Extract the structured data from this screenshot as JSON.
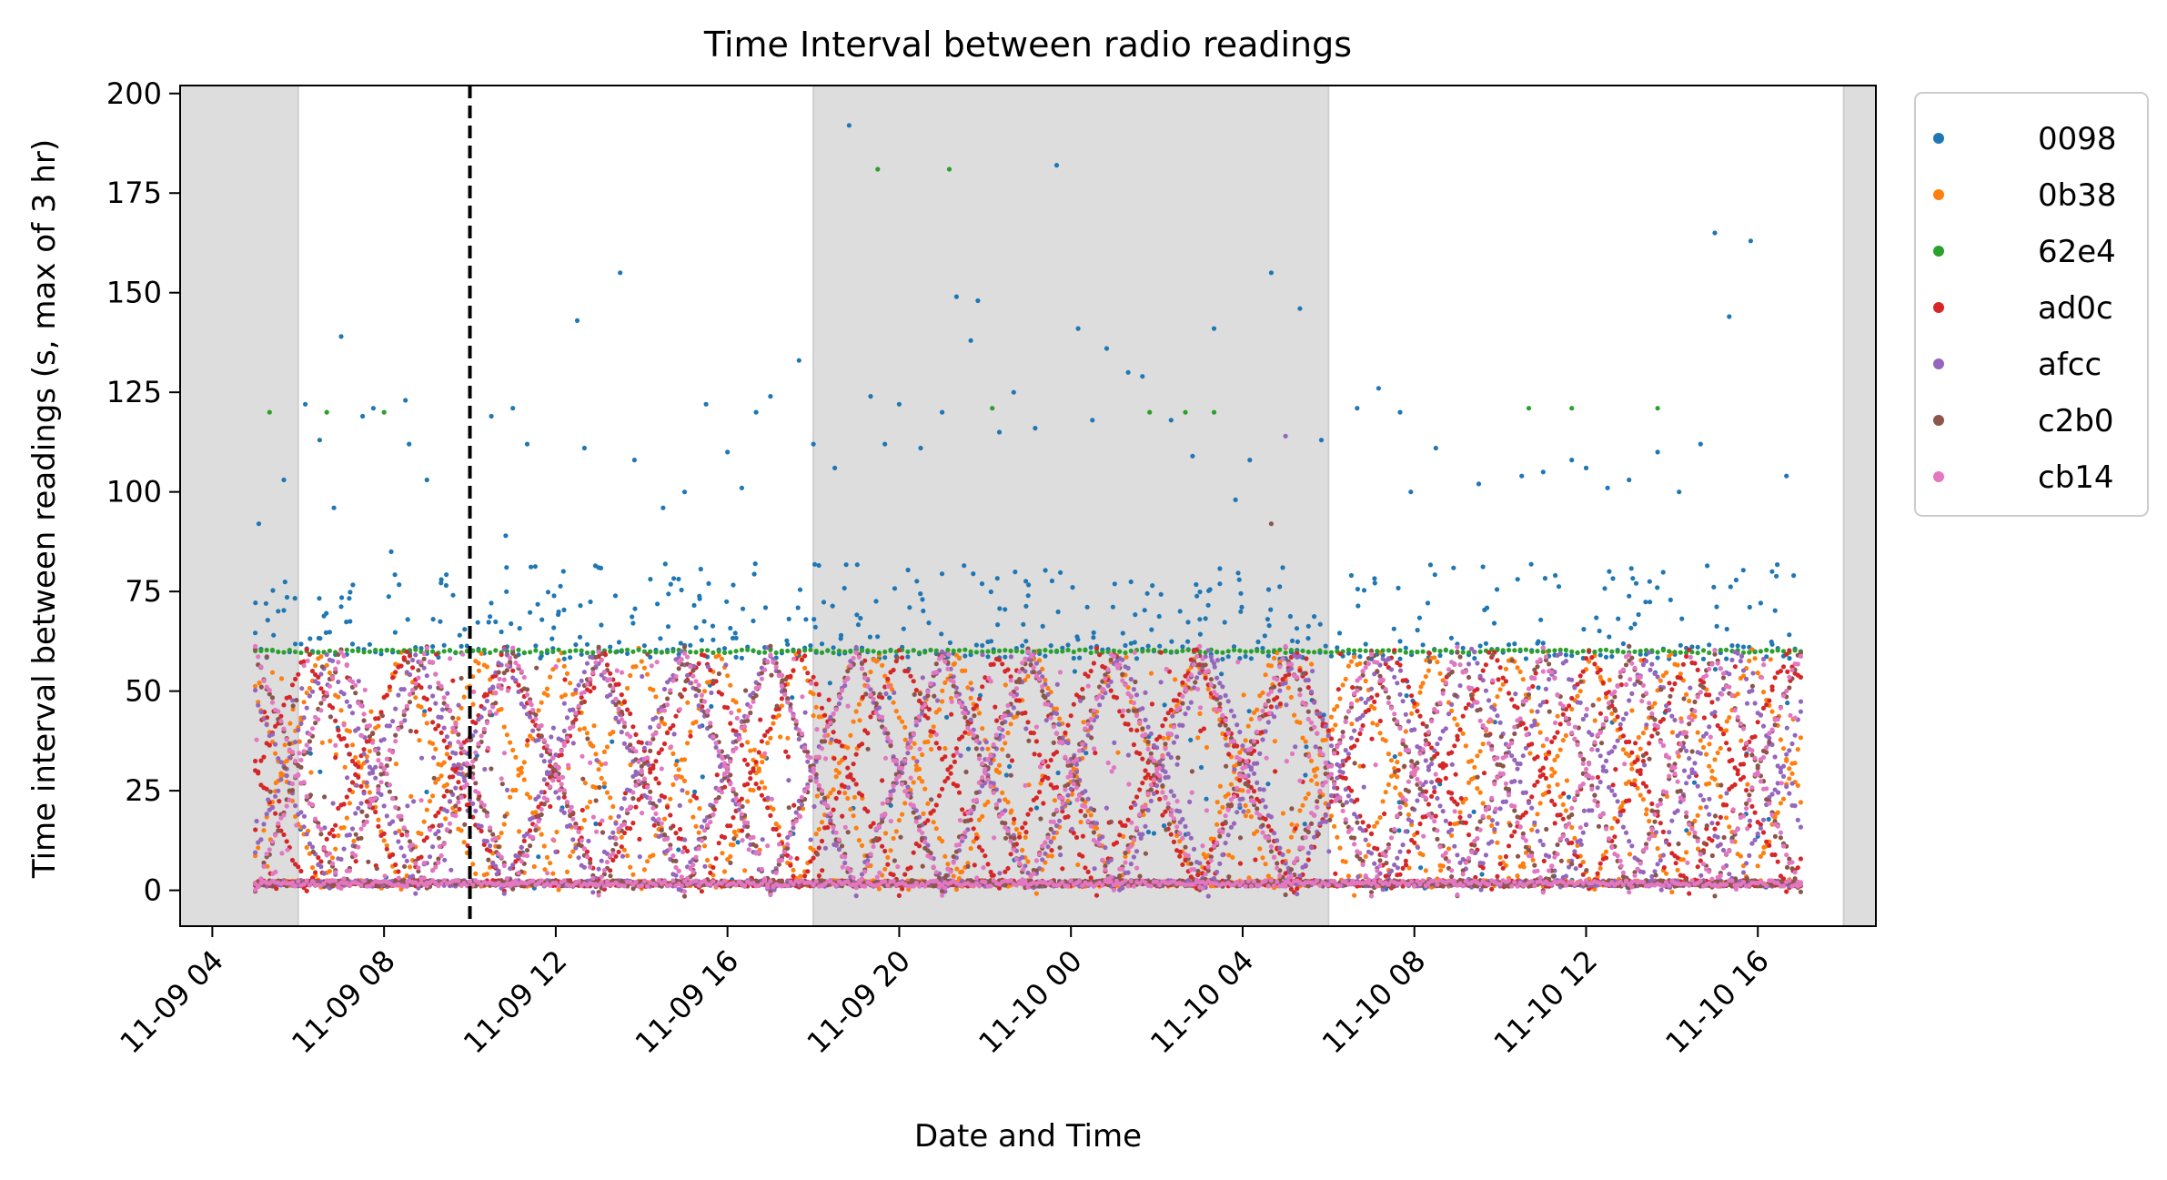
{
  "chart_data": {
    "type": "scatter",
    "title": "Time Interval between radio readings",
    "xlabel": "Date and Time",
    "ylabel": "Time interval between readings (s, max of 3 hr)",
    "x_ticks": [
      "11-09 04",
      "11-09 08",
      "11-09 12",
      "11-09 16",
      "11-09 20",
      "11-10 00",
      "11-10 04",
      "11-10 08",
      "11-10 12",
      "11-10 16"
    ],
    "y_ticks": [
      "0",
      "25",
      "50",
      "75",
      "100",
      "125",
      "150",
      "175",
      "200"
    ],
    "xlim": [
      "2023-11-09 03:15",
      "2023-11-10 18:45"
    ],
    "ylim": [
      -9,
      202
    ],
    "grid": false,
    "legend_position": "outside-right",
    "data_start": "2023-11-09 05:00",
    "data_end": "2023-11-10 17:00",
    "night_shading": [
      {
        "start": "2023-11-09 03:15",
        "end": "2023-11-09 06:00"
      },
      {
        "start": "2023-11-09 18:00",
        "end": "2023-11-10 06:00"
      },
      {
        "start": "2023-11-10 18:00",
        "end": "2023-11-10 18:45"
      }
    ],
    "reference_line": {
      "x": "2023-11-09 10:00",
      "style": "dashed",
      "color": "#000000"
    },
    "series": [
      {
        "name": "0098",
        "color": "#1f77b4",
        "baseline": 60,
        "outliers": [
          {
            "x": "2023-11-09 05:05",
            "y": 92
          },
          {
            "x": "2023-11-09 05:15",
            "y": 72
          },
          {
            "x": "2023-11-09 05:40",
            "y": 103
          },
          {
            "x": "2023-11-09 06:10",
            "y": 122
          },
          {
            "x": "2023-11-09 06:30",
            "y": 113
          },
          {
            "x": "2023-11-09 06:50",
            "y": 96
          },
          {
            "x": "2023-11-09 07:00",
            "y": 139
          },
          {
            "x": "2023-11-09 07:30",
            "y": 119
          },
          {
            "x": "2023-11-09 07:45",
            "y": 121
          },
          {
            "x": "2023-11-09 08:30",
            "y": 123
          },
          {
            "x": "2023-11-09 08:35",
            "y": 112
          },
          {
            "x": "2023-11-09 09:00",
            "y": 103
          },
          {
            "x": "2023-11-09 08:10",
            "y": 85
          },
          {
            "x": "2023-11-09 09:20",
            "y": 78
          },
          {
            "x": "2023-11-09 10:30",
            "y": 119
          },
          {
            "x": "2023-11-09 10:50",
            "y": 89
          },
          {
            "x": "2023-11-09 11:00",
            "y": 121
          },
          {
            "x": "2023-11-09 11:20",
            "y": 112
          },
          {
            "x": "2023-11-09 12:30",
            "y": 143
          },
          {
            "x": "2023-11-09 12:40",
            "y": 111
          },
          {
            "x": "2023-11-09 13:00",
            "y": 81
          },
          {
            "x": "2023-11-09 13:30",
            "y": 155
          },
          {
            "x": "2023-11-09 13:50",
            "y": 108
          },
          {
            "x": "2023-11-09 14:30",
            "y": 96
          },
          {
            "x": "2023-11-09 15:00",
            "y": 100
          },
          {
            "x": "2023-11-09 15:30",
            "y": 122
          },
          {
            "x": "2023-11-09 16:00",
            "y": 110
          },
          {
            "x": "2023-11-09 16:20",
            "y": 101
          },
          {
            "x": "2023-11-09 16:40",
            "y": 120
          },
          {
            "x": "2023-11-09 17:00",
            "y": 124
          },
          {
            "x": "2023-11-09 17:40",
            "y": 133
          },
          {
            "x": "2023-11-09 18:00",
            "y": 112
          },
          {
            "x": "2023-11-09 18:30",
            "y": 106
          },
          {
            "x": "2023-11-09 18:50",
            "y": 192
          },
          {
            "x": "2023-11-09 19:20",
            "y": 124
          },
          {
            "x": "2023-11-09 19:40",
            "y": 112
          },
          {
            "x": "2023-11-09 20:00",
            "y": 122
          },
          {
            "x": "2023-11-09 20:30",
            "y": 111
          },
          {
            "x": "2023-11-09 21:00",
            "y": 120
          },
          {
            "x": "2023-11-09 21:20",
            "y": 149
          },
          {
            "x": "2023-11-09 21:40",
            "y": 138
          },
          {
            "x": "2023-11-09 21:50",
            "y": 148
          },
          {
            "x": "2023-11-09 22:20",
            "y": 115
          },
          {
            "x": "2023-11-09 22:40",
            "y": 125
          },
          {
            "x": "2023-11-09 23:10",
            "y": 116
          },
          {
            "x": "2023-11-09 23:40",
            "y": 182
          },
          {
            "x": "2023-11-10 00:10",
            "y": 141
          },
          {
            "x": "2023-11-10 00:30",
            "y": 118
          },
          {
            "x": "2023-11-10 00:50",
            "y": 136
          },
          {
            "x": "2023-11-10 01:20",
            "y": 130
          },
          {
            "x": "2023-11-10 01:40",
            "y": 129
          },
          {
            "x": "2023-11-10 02:20",
            "y": 118
          },
          {
            "x": "2023-11-10 02:50",
            "y": 109
          },
          {
            "x": "2023-11-10 03:20",
            "y": 141
          },
          {
            "x": "2023-11-10 03:50",
            "y": 98
          },
          {
            "x": "2023-11-10 04:10",
            "y": 108
          },
          {
            "x": "2023-11-10 04:40",
            "y": 155
          },
          {
            "x": "2023-11-10 05:20",
            "y": 146
          },
          {
            "x": "2023-11-10 05:50",
            "y": 113
          },
          {
            "x": "2023-11-10 06:40",
            "y": 121
          },
          {
            "x": "2023-11-10 07:10",
            "y": 126
          },
          {
            "x": "2023-11-10 07:40",
            "y": 120
          },
          {
            "x": "2023-11-10 07:55",
            "y": 100
          },
          {
            "x": "2023-11-10 08:30",
            "y": 111
          },
          {
            "x": "2023-11-10 09:30",
            "y": 102
          },
          {
            "x": "2023-11-10 10:30",
            "y": 104
          },
          {
            "x": "2023-11-10 11:00",
            "y": 105
          },
          {
            "x": "2023-11-10 11:40",
            "y": 108
          },
          {
            "x": "2023-11-10 12:00",
            "y": 106
          },
          {
            "x": "2023-11-10 12:30",
            "y": 101
          },
          {
            "x": "2023-11-10 13:00",
            "y": 103
          },
          {
            "x": "2023-11-10 13:40",
            "y": 110
          },
          {
            "x": "2023-11-10 14:10",
            "y": 100
          },
          {
            "x": "2023-11-10 14:40",
            "y": 112
          },
          {
            "x": "2023-11-10 15:00",
            "y": 165
          },
          {
            "x": "2023-11-10 15:20",
            "y": 144
          },
          {
            "x": "2023-11-10 15:50",
            "y": 163
          },
          {
            "x": "2023-11-10 16:40",
            "y": 104
          },
          {
            "x": "2023-11-10 16:50",
            "y": 79
          }
        ]
      },
      {
        "name": "0b38",
        "color": "#ff7f0e",
        "period_hours": 3.7,
        "phase_hours": 0.3
      },
      {
        "name": "62e4",
        "color": "#2ca02c",
        "baseline": 60,
        "outliers": [
          {
            "x": "2023-11-09 05:20",
            "y": 120
          },
          {
            "x": "2023-11-09 06:40",
            "y": 120
          },
          {
            "x": "2023-11-09 08:00",
            "y": 120
          },
          {
            "x": "2023-11-09 19:30",
            "y": 181
          },
          {
            "x": "2023-11-09 21:10",
            "y": 181
          },
          {
            "x": "2023-11-09 22:10",
            "y": 121
          },
          {
            "x": "2023-11-10 01:50",
            "y": 120
          },
          {
            "x": "2023-11-10 02:40",
            "y": 120
          },
          {
            "x": "2023-11-10 03:20",
            "y": 120
          },
          {
            "x": "2023-11-10 10:40",
            "y": 121
          },
          {
            "x": "2023-11-10 11:40",
            "y": 121
          },
          {
            "x": "2023-11-10 13:40",
            "y": 121
          }
        ]
      },
      {
        "name": "ad0c",
        "color": "#d62728",
        "period_hours": 4.6,
        "phase_hours": 1.1
      },
      {
        "name": "afcc",
        "color": "#9467bd",
        "period_hours": 4.1,
        "phase_hours": 2.4,
        "outliers": [
          {
            "x": "2023-11-10 05:00",
            "y": 114
          }
        ]
      },
      {
        "name": "c2b0",
        "color": "#8c564b",
        "period_hours": 4.0,
        "phase_hours": 0.0,
        "outliers": [
          {
            "x": "2023-11-10 04:40",
            "y": 92
          }
        ]
      },
      {
        "name": "cb14",
        "color": "#e377c2",
        "period_hours": 4.0,
        "phase_hours": 2.0
      }
    ]
  }
}
